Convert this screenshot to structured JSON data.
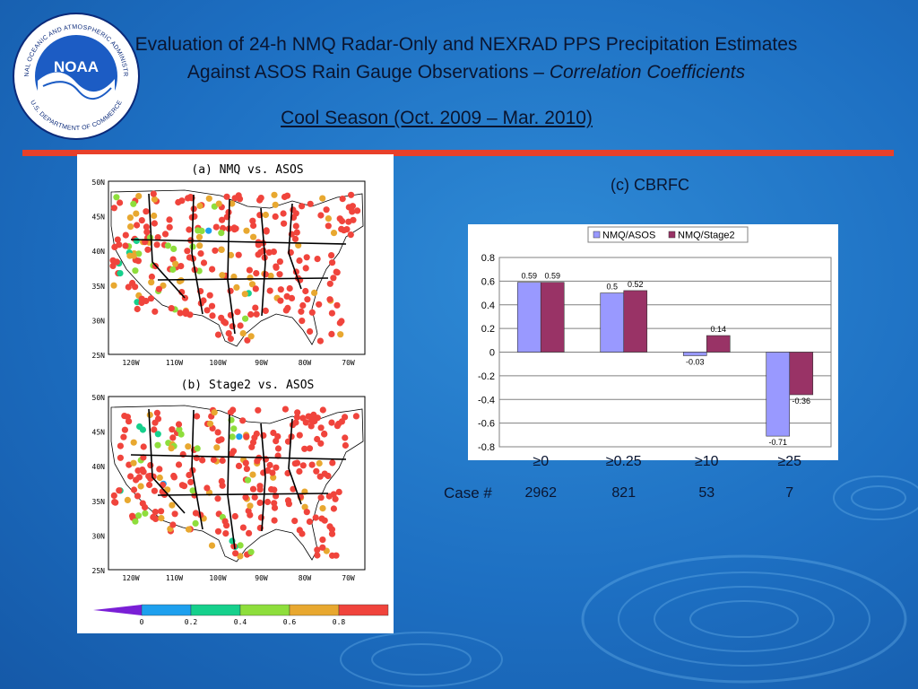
{
  "slide": {
    "title_line1": "Evaluation of 24-h NMQ Radar-Only and NEXRAD PPS Precipitation Estimates",
    "title_line2": "Against ASOS Rain Gauge Observations – ",
    "title_line2_italic": "Correlation Coefficients",
    "subtitle": "Cool Season (Oct. 2009 – Mar. 2010)",
    "logo": {
      "text_center": "NOAA",
      "ring_top": "NATIONAL OCEANIC AND ATMOSPHERIC ADMINISTRATION",
      "ring_bottom": "U.S. DEPARTMENT OF COMMERCE",
      "icon": "noaa-logo-icon"
    },
    "colors": {
      "accent_rule": "#e8402a",
      "background": "#1d6fc2"
    }
  },
  "maps": {
    "panel_a_title": "(a) NMQ vs. ASOS",
    "panel_b_title": "(b) Stage2 vs. ASOS",
    "lat_labels": [
      "50N",
      "45N",
      "40N",
      "35N",
      "30N",
      "25N"
    ],
    "lon_labels": [
      "120W",
      "110W",
      "100W",
      "90W",
      "80W",
      "70W"
    ],
    "colorbar_ticks": [
      "0",
      "0.2",
      "0.4",
      "0.6",
      "0.8"
    ],
    "colorbar_colors": [
      "#7a1fd6",
      "#1ea0ee",
      "#16d08c",
      "#8ede3c",
      "#e8a830",
      "#f0443c"
    ]
  },
  "chart_heading": "(c) CBRFC",
  "case_label": "Case #",
  "chart_data": {
    "type": "bar",
    "categories": [
      "≥0",
      "≥0.25",
      "≥10",
      "≥25"
    ],
    "case_counts": [
      "2962",
      "821",
      "53",
      "7"
    ],
    "series": [
      {
        "name": "NMQ/ASOS",
        "values": [
          0.59,
          0.5,
          -0.03,
          -0.71
        ],
        "labels": [
          "0.59",
          "0.5",
          "-0.03",
          "-0.71"
        ],
        "color": "#9999ff"
      },
      {
        "name": "NMQ/Stage2",
        "values": [
          0.59,
          0.52,
          0.14,
          -0.36
        ],
        "labels": [
          "0.59",
          "0.52",
          "0.14",
          "-0.36"
        ],
        "color": "#993366"
      }
    ],
    "ylim": [
      -0.8,
      0.8
    ],
    "yticks": [
      0.8,
      0.6,
      0.4,
      0.2,
      0,
      -0.2,
      -0.4,
      -0.6,
      -0.8
    ],
    "ytick_labels": [
      "0.8",
      "0.6",
      "0.4",
      "0.2",
      "0",
      "-0.2",
      "-0.4",
      "-0.6",
      "-0.8"
    ],
    "grid": true,
    "legend": "top",
    "xlabel": "",
    "ylabel": ""
  }
}
